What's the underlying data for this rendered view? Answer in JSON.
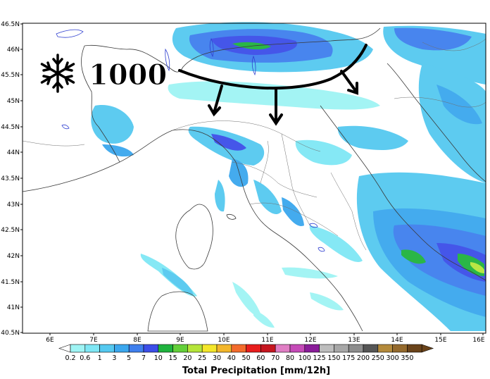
{
  "map": {
    "lat_labels": [
      "46.5N",
      "46N",
      "45.5N",
      "45N",
      "44.5N",
      "44N",
      "43.5N",
      "43N",
      "42.5N",
      "42N",
      "41.5N",
      "41N",
      "40.5N"
    ],
    "lon_labels": [
      "6E",
      "7E",
      "8E",
      "9E",
      "10E",
      "11E",
      "12E",
      "13E",
      "14E",
      "15E",
      "16E"
    ]
  },
  "annotation": {
    "snow_level": "1000",
    "icon": "snowflake-icon"
  },
  "legend": {
    "title": "Total Precipitation [mm/12h]",
    "labels": [
      "0.2",
      "0.6",
      "1",
      "3",
      "5",
      "7",
      "10",
      "15",
      "20",
      "25",
      "30",
      "40",
      "50",
      "60",
      "70",
      "80",
      "100",
      "125",
      "150",
      "175",
      "200",
      "250",
      "300",
      "350"
    ],
    "colors": [
      "#9ff4f4",
      "#7fe7f5",
      "#55c9f0",
      "#3ba7ee",
      "#3f7fee",
      "#3c4ee8",
      "#1fb33e",
      "#63cf3a",
      "#b5e53a",
      "#f4e62a",
      "#f3b62b",
      "#f36b2c",
      "#e81d1c",
      "#c6161f",
      "#e07ec4",
      "#c54bb8",
      "#8a1d99",
      "#bdbdbd",
      "#a7a7a7",
      "#8d8d8d",
      "#565656",
      "#b48a3b",
      "#94692c",
      "#6a431a"
    ]
  }
}
